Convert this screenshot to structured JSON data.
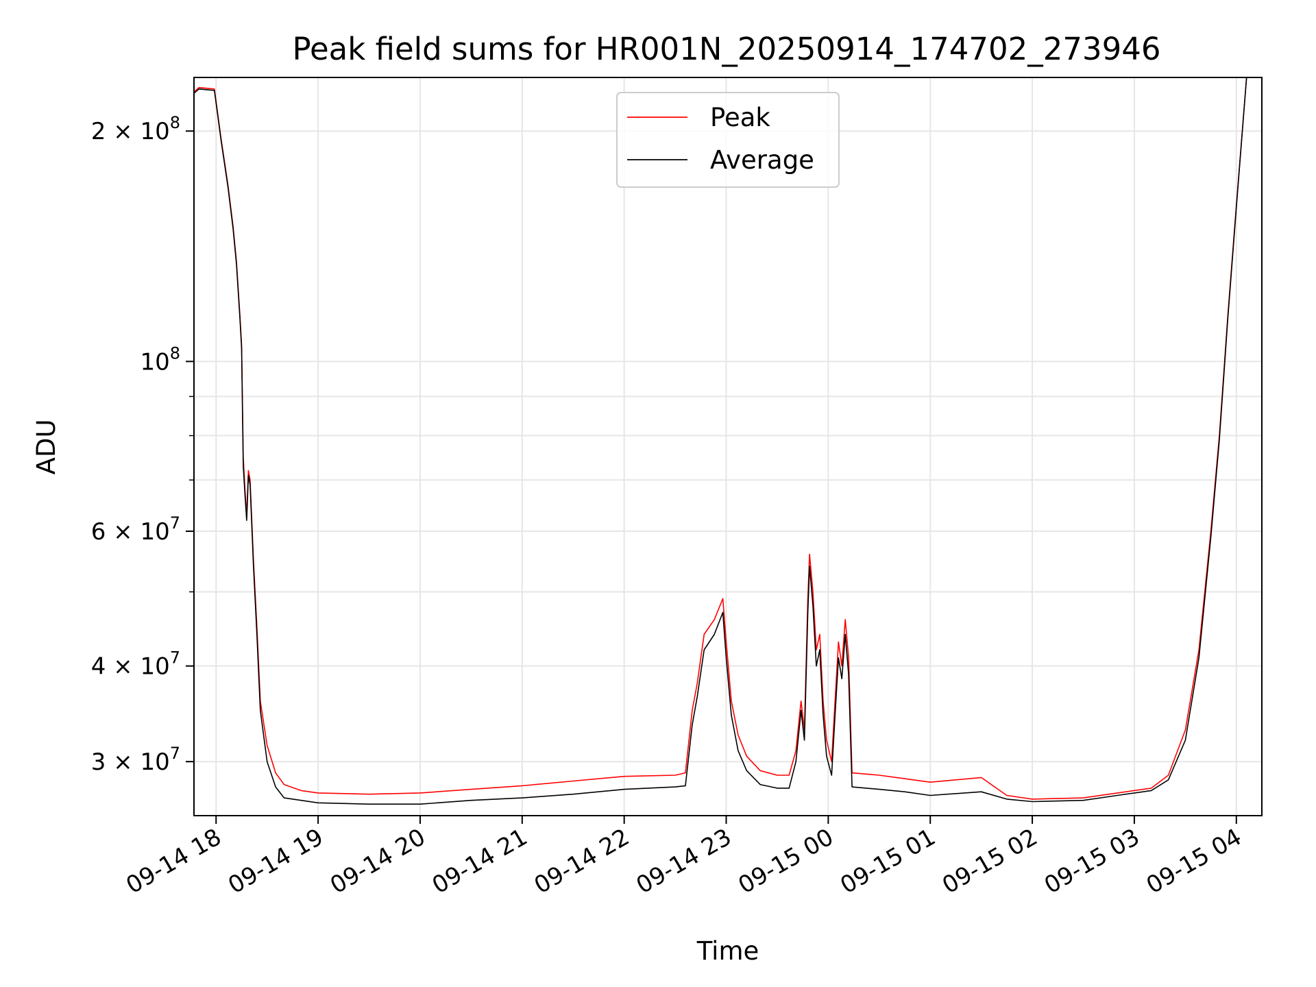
{
  "chart_data": {
    "type": "line",
    "title": "Peak field sums for HR001N_20250914_174702_273946",
    "xlabel": "Time",
    "ylabel": "ADU",
    "yscale": "log",
    "ylim": [
      25500000,
      235000000
    ],
    "xlim": [
      "09-14 17:47",
      "09-15 04:15"
    ],
    "x_ticks": [
      "09-14 18",
      "09-14 19",
      "09-14 20",
      "09-14 21",
      "09-14 22",
      "09-14 23",
      "09-15 00",
      "09-15 01",
      "09-15 02",
      "09-15 03",
      "09-15 04"
    ],
    "y_ticks": [
      {
        "base": "3 × 10",
        "exp": "7",
        "value": 30000000
      },
      {
        "base": "4 × 10",
        "exp": "7",
        "value": 40000000
      },
      {
        "base": "6 × 10",
        "exp": "7",
        "value": 60000000
      },
      {
        "base": "10",
        "exp": "8",
        "value": 100000000
      },
      {
        "base": "2 × 10",
        "exp": "8",
        "value": 200000000
      }
    ],
    "grid": true,
    "legend": {
      "placement": "top-center",
      "entries": [
        "Peak",
        "Average"
      ]
    },
    "series": [
      {
        "name": "Peak",
        "color": "#ff0000",
        "points": [
          [
            "09-14 17:47",
            225000000
          ],
          [
            "09-14 17:50",
            228000000
          ],
          [
            "09-14 17:59",
            227000000
          ],
          [
            "09-14 18:03",
            195000000
          ],
          [
            "09-14 18:07",
            170000000
          ],
          [
            "09-14 18:10",
            150000000
          ],
          [
            "09-14 18:12",
            135000000
          ],
          [
            "09-14 18:14",
            115000000
          ],
          [
            "09-14 18:15",
            105000000
          ],
          [
            "09-14 18:16",
            75000000
          ],
          [
            "09-14 18:17",
            68000000
          ],
          [
            "09-14 18:18",
            63000000
          ],
          [
            "09-14 18:19",
            72000000
          ],
          [
            "09-14 18:20",
            70000000
          ],
          [
            "09-14 18:22",
            55000000
          ],
          [
            "09-14 18:24",
            45000000
          ],
          [
            "09-14 18:26",
            36000000
          ],
          [
            "09-14 18:30",
            31500000
          ],
          [
            "09-14 18:35",
            29000000
          ],
          [
            "09-14 18:40",
            28000000
          ],
          [
            "09-14 18:50",
            27500000
          ],
          [
            "09-14 19:00",
            27300000
          ],
          [
            "09-14 19:30",
            27200000
          ],
          [
            "09-14 20:00",
            27300000
          ],
          [
            "09-14 20:30",
            27600000
          ],
          [
            "09-14 21:00",
            27900000
          ],
          [
            "09-14 21:30",
            28300000
          ],
          [
            "09-14 22:00",
            28700000
          ],
          [
            "09-14 22:30",
            28800000
          ],
          [
            "09-14 22:36",
            29000000
          ],
          [
            "09-14 22:40",
            35000000
          ],
          [
            "09-14 22:43",
            38000000
          ],
          [
            "09-14 22:47",
            44000000
          ],
          [
            "09-14 22:53",
            46000000
          ],
          [
            "09-14 22:58",
            49000000
          ],
          [
            "09-14 23:00",
            43000000
          ],
          [
            "09-14 23:03",
            36000000
          ],
          [
            "09-14 23:07",
            32500000
          ],
          [
            "09-14 23:12",
            30500000
          ],
          [
            "09-14 23:20",
            29200000
          ],
          [
            "09-14 23:30",
            28800000
          ],
          [
            "09-14 23:37",
            28800000
          ],
          [
            "09-14 23:41",
            31000000
          ],
          [
            "09-14 23:44",
            36000000
          ],
          [
            "09-14 23:46",
            33000000
          ],
          [
            "09-14 23:48",
            49000000
          ],
          [
            "09-14 23:49",
            56000000
          ],
          [
            "09-14 23:51",
            50000000
          ],
          [
            "09-14 23:53",
            42000000
          ],
          [
            "09-14 23:55",
            44000000
          ],
          [
            "09-14 23:57",
            36000000
          ],
          [
            "09-14 23:59",
            32000000
          ],
          [
            "09-15 00:02",
            30000000
          ],
          [
            "09-15 00:04",
            36000000
          ],
          [
            "09-15 00:06",
            43000000
          ],
          [
            "09-15 00:08",
            40000000
          ],
          [
            "09-15 00:10",
            46000000
          ],
          [
            "09-15 00:12",
            41000000
          ],
          [
            "09-15 00:14",
            29000000
          ],
          [
            "09-15 00:30",
            28800000
          ],
          [
            "09-15 00:45",
            28500000
          ],
          [
            "09-15 01:00",
            28200000
          ],
          [
            "09-15 01:30",
            28600000
          ],
          [
            "09-15 01:45",
            27100000
          ],
          [
            "09-15 02:00",
            26800000
          ],
          [
            "09-15 02:30",
            26900000
          ],
          [
            "09-15 02:50",
            27300000
          ],
          [
            "09-15 03:10",
            27700000
          ],
          [
            "09-15 03:20",
            28800000
          ],
          [
            "09-15 03:30",
            33000000
          ],
          [
            "09-15 03:38",
            42000000
          ],
          [
            "09-15 03:45",
            60000000
          ],
          [
            "09-15 03:50",
            80000000
          ],
          [
            "09-15 03:55",
            115000000
          ],
          [
            "09-15 04:00",
            160000000
          ],
          [
            "09-15 04:06",
            235000000
          ]
        ]
      },
      {
        "name": "Average",
        "color": "#000000",
        "points": [
          [
            "09-14 17:47",
            224000000
          ],
          [
            "09-14 17:50",
            227000000
          ],
          [
            "09-14 17:59",
            226000000
          ],
          [
            "09-14 18:03",
            194000000
          ],
          [
            "09-14 18:07",
            169000000
          ],
          [
            "09-14 18:10",
            149000000
          ],
          [
            "09-14 18:12",
            134000000
          ],
          [
            "09-14 18:14",
            114000000
          ],
          [
            "09-14 18:15",
            104000000
          ],
          [
            "09-14 18:16",
            73000000
          ],
          [
            "09-14 18:17",
            67000000
          ],
          [
            "09-14 18:18",
            62000000
          ],
          [
            "09-14 18:19",
            71000000
          ],
          [
            "09-14 18:20",
            69000000
          ],
          [
            "09-14 18:22",
            54000000
          ],
          [
            "09-14 18:24",
            44000000
          ],
          [
            "09-14 18:26",
            35000000
          ],
          [
            "09-14 18:30",
            30000000
          ],
          [
            "09-14 18:35",
            27800000
          ],
          [
            "09-14 18:40",
            26900000
          ],
          [
            "09-14 18:50",
            26700000
          ],
          [
            "09-14 19:00",
            26500000
          ],
          [
            "09-14 19:30",
            26400000
          ],
          [
            "09-14 20:00",
            26400000
          ],
          [
            "09-14 20:30",
            26700000
          ],
          [
            "09-14 21:00",
            26900000
          ],
          [
            "09-14 21:30",
            27200000
          ],
          [
            "09-14 22:00",
            27600000
          ],
          [
            "09-14 22:30",
            27800000
          ],
          [
            "09-14 22:36",
            27900000
          ],
          [
            "09-14 22:40",
            33500000
          ],
          [
            "09-14 22:43",
            36500000
          ],
          [
            "09-14 22:47",
            42000000
          ],
          [
            "09-14 22:53",
            44000000
          ],
          [
            "09-14 22:58",
            47000000
          ],
          [
            "09-14 23:00",
            41000000
          ],
          [
            "09-14 23:03",
            34500000
          ],
          [
            "09-14 23:07",
            31000000
          ],
          [
            "09-14 23:12",
            29200000
          ],
          [
            "09-14 23:20",
            28000000
          ],
          [
            "09-14 23:30",
            27700000
          ],
          [
            "09-14 23:37",
            27700000
          ],
          [
            "09-14 23:41",
            30000000
          ],
          [
            "09-14 23:44",
            35000000
          ],
          [
            "09-14 23:46",
            32000000
          ],
          [
            "09-14 23:48",
            47000000
          ],
          [
            "09-14 23:49",
            54000000
          ],
          [
            "09-14 23:51",
            48000000
          ],
          [
            "09-14 23:53",
            40000000
          ],
          [
            "09-14 23:55",
            42000000
          ],
          [
            "09-14 23:57",
            34500000
          ],
          [
            "09-14 23:59",
            30500000
          ],
          [
            "09-15 00:02",
            28800000
          ],
          [
            "09-15 00:04",
            34500000
          ],
          [
            "09-15 00:06",
            41000000
          ],
          [
            "09-15 00:08",
            38500000
          ],
          [
            "09-15 00:10",
            44000000
          ],
          [
            "09-15 00:12",
            39000000
          ],
          [
            "09-15 00:14",
            27800000
          ],
          [
            "09-15 00:30",
            27600000
          ],
          [
            "09-15 00:45",
            27400000
          ],
          [
            "09-15 01:00",
            27100000
          ],
          [
            "09-15 01:30",
            27400000
          ],
          [
            "09-15 01:45",
            26800000
          ],
          [
            "09-15 02:00",
            26600000
          ],
          [
            "09-15 02:30",
            26700000
          ],
          [
            "09-15 02:50",
            27100000
          ],
          [
            "09-15 03:10",
            27500000
          ],
          [
            "09-15 03:20",
            28400000
          ],
          [
            "09-15 03:30",
            32000000
          ],
          [
            "09-15 03:38",
            41000000
          ],
          [
            "09-15 03:45",
            59000000
          ],
          [
            "09-15 03:50",
            79000000
          ],
          [
            "09-15 03:55",
            114000000
          ],
          [
            "09-15 04:00",
            159000000
          ],
          [
            "09-15 04:06",
            235000000
          ]
        ]
      }
    ]
  }
}
